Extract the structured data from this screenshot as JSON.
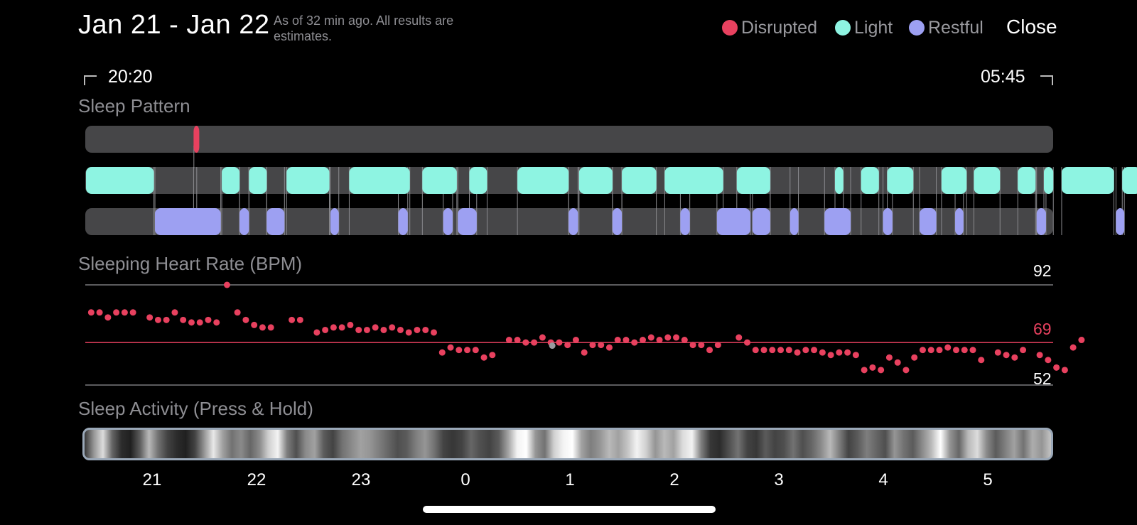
{
  "header": {
    "title": "Jan 21 - Jan 22",
    "subtitle": "As of 32 min ago. All results are estimates.",
    "close_label": "Close"
  },
  "legend": [
    {
      "label": "Disrupted",
      "color": "#e8415f"
    },
    {
      "label": "Light",
      "color": "#8ef4e2"
    },
    {
      "label": "Restful",
      "color": "#9da0f2"
    }
  ],
  "time_range": {
    "start": "20:20",
    "end": "05:45"
  },
  "sleep_pattern": {
    "title": "Sleep Pattern",
    "disrupted": [
      [
        1.03,
        1.06
      ]
    ],
    "light": [
      [
        0.0,
        0.65
      ],
      [
        1.3,
        1.47
      ],
      [
        1.56,
        1.73
      ],
      [
        1.92,
        2.33
      ],
      [
        2.52,
        3.1
      ],
      [
        3.22,
        3.55
      ],
      [
        3.67,
        3.84
      ],
      [
        4.13,
        4.62
      ],
      [
        4.72,
        5.04
      ],
      [
        5.13,
        5.46
      ],
      [
        5.54,
        6.1
      ],
      [
        6.23,
        6.55
      ],
      [
        7.17,
        7.25
      ],
      [
        7.42,
        7.59
      ],
      [
        7.67,
        7.92
      ],
      [
        8.19,
        8.43
      ],
      [
        8.5,
        8.75
      ],
      [
        8.92,
        9.09
      ],
      [
        9.17,
        9.26
      ],
      [
        9.34,
        9.84
      ],
      [
        9.92,
        10.1
      ]
    ],
    "restful": [
      [
        0.66,
        1.29
      ],
      [
        1.47,
        1.56
      ],
      [
        1.73,
        1.9
      ],
      [
        2.34,
        2.42
      ],
      [
        2.99,
        3.08
      ],
      [
        3.42,
        3.51
      ],
      [
        3.56,
        3.74
      ],
      [
        4.62,
        4.71
      ],
      [
        5.04,
        5.13
      ],
      [
        5.69,
        5.78
      ],
      [
        6.04,
        6.36
      ],
      [
        6.38,
        6.55
      ],
      [
        6.74,
        6.82
      ],
      [
        7.07,
        7.32
      ],
      [
        7.63,
        7.72
      ],
      [
        7.98,
        8.14
      ],
      [
        8.32,
        8.4
      ],
      [
        9.1,
        9.19
      ],
      [
        9.86,
        9.94
      ]
    ]
  },
  "heart_rate": {
    "title": "Sleeping Heart Rate (BPM)",
    "max_label": "92",
    "avg_label": "69",
    "min_label": "52",
    "max": 92,
    "avg": 69,
    "min": 52,
    "accent_color": "#e8415f",
    "points": [
      [
        0.05,
        81
      ],
      [
        0.13,
        81
      ],
      [
        0.21,
        79
      ],
      [
        0.29,
        81
      ],
      [
        0.37,
        81
      ],
      [
        0.45,
        81
      ],
      [
        0.61,
        79
      ],
      [
        0.69,
        78
      ],
      [
        0.77,
        78
      ],
      [
        0.85,
        81
      ],
      [
        0.93,
        78
      ],
      [
        1.01,
        77
      ],
      [
        1.09,
        77
      ],
      [
        1.17,
        78
      ],
      [
        1.25,
        77
      ],
      [
        1.35,
        92
      ],
      [
        1.45,
        81
      ],
      [
        1.53,
        78
      ],
      [
        1.61,
        76
      ],
      [
        1.69,
        75
      ],
      [
        1.77,
        75
      ],
      [
        1.97,
        78
      ],
      [
        2.05,
        78
      ],
      [
        2.21,
        73
      ],
      [
        2.29,
        74
      ],
      [
        2.37,
        75
      ],
      [
        2.45,
        75
      ],
      [
        2.53,
        76
      ],
      [
        2.61,
        74
      ],
      [
        2.69,
        74
      ],
      [
        2.77,
        75
      ],
      [
        2.85,
        74
      ],
      [
        2.93,
        75
      ],
      [
        3.01,
        74
      ],
      [
        3.09,
        73
      ],
      [
        3.17,
        74
      ],
      [
        3.25,
        74
      ],
      [
        3.33,
        73
      ],
      [
        3.41,
        65
      ],
      [
        3.49,
        67
      ],
      [
        3.57,
        66
      ],
      [
        3.65,
        66
      ],
      [
        3.73,
        66
      ],
      [
        3.81,
        63
      ],
      [
        3.89,
        64
      ],
      [
        4.05,
        70
      ],
      [
        4.13,
        70
      ],
      [
        4.21,
        69
      ],
      [
        4.29,
        69
      ],
      [
        4.37,
        71
      ],
      [
        4.45,
        69
      ],
      [
        4.53,
        69
      ],
      [
        4.61,
        68
      ],
      [
        4.69,
        70
      ],
      [
        4.77,
        65
      ],
      [
        4.85,
        68
      ],
      [
        4.93,
        68
      ],
      [
        5.01,
        67
      ],
      [
        5.09,
        70
      ],
      [
        5.17,
        70
      ],
      [
        5.25,
        69
      ],
      [
        5.33,
        70
      ],
      [
        5.41,
        71
      ],
      [
        5.49,
        70
      ],
      [
        5.57,
        71
      ],
      [
        5.65,
        71
      ],
      [
        5.73,
        70
      ],
      [
        5.81,
        68
      ],
      [
        5.89,
        68
      ],
      [
        5.97,
        66
      ],
      [
        6.05,
        68
      ],
      [
        6.25,
        71
      ],
      [
        6.33,
        69
      ],
      [
        6.41,
        66
      ],
      [
        6.49,
        66
      ],
      [
        6.57,
        66
      ],
      [
        6.65,
        66
      ],
      [
        6.73,
        66
      ],
      [
        6.81,
        65
      ],
      [
        6.89,
        66
      ],
      [
        6.97,
        66
      ],
      [
        7.05,
        65
      ],
      [
        7.13,
        64
      ],
      [
        7.21,
        65
      ],
      [
        7.29,
        65
      ],
      [
        7.37,
        64
      ],
      [
        7.45,
        58
      ],
      [
        7.53,
        59
      ],
      [
        7.61,
        58
      ],
      [
        7.69,
        63
      ],
      [
        7.77,
        61
      ],
      [
        7.85,
        58
      ],
      [
        7.93,
        63
      ],
      [
        8.01,
        66
      ],
      [
        8.09,
        66
      ],
      [
        8.17,
        66
      ],
      [
        8.25,
        67
      ],
      [
        8.33,
        66
      ],
      [
        8.41,
        66
      ],
      [
        8.49,
        66
      ],
      [
        8.57,
        62
      ],
      [
        8.73,
        65
      ],
      [
        8.81,
        64
      ],
      [
        8.89,
        63
      ],
      [
        8.97,
        66
      ],
      [
        9.13,
        64
      ],
      [
        9.21,
        62
      ],
      [
        9.29,
        59
      ],
      [
        9.37,
        58
      ],
      [
        9.45,
        67
      ],
      [
        9.53,
        70
      ]
    ],
    "grey_point": [
      4.45,
      70
    ]
  },
  "sleep_activity": {
    "title": "Sleep Activity (Press & Hold)",
    "intensity": [
      0.15,
      0.55,
      0.85,
      0.35,
      0.1,
      0.05,
      0.3,
      0.7,
      0.4,
      0.2,
      0.1,
      0.05,
      0.2,
      0.55,
      0.9,
      0.6,
      0.4,
      0.5,
      0.35,
      0.5,
      0.8,
      0.95,
      0.45,
      0.25,
      0.5,
      0.6,
      0.3,
      0.2,
      0.4,
      0.5,
      0.6,
      0.55,
      0.45,
      0.35,
      0.25,
      0.3,
      0.45,
      0.55,
      0.4,
      0.2,
      0.15,
      0.2,
      0.35,
      0.25,
      0.2,
      0.3,
      0.6,
      0.95,
      1.0,
      0.55,
      0.4,
      0.8,
      0.95,
      1.0,
      0.6,
      0.45,
      0.55,
      0.7,
      0.6,
      0.75,
      0.95,
      0.8,
      0.55,
      0.7,
      0.6,
      0.85,
      0.95,
      0.45,
      0.15,
      0.1,
      0.25,
      0.4,
      0.2,
      0.15,
      0.3,
      0.2,
      0.25,
      0.4,
      0.25,
      0.35,
      0.5,
      0.7,
      0.45,
      0.2,
      0.3,
      0.45,
      0.35,
      0.25,
      0.55,
      0.4,
      0.3,
      0.5,
      0.7,
      1.0,
      0.55,
      0.35,
      0.7,
      0.85,
      0.5,
      0.3,
      0.45,
      0.6,
      0.4,
      0.65,
      0.55,
      0.75
    ]
  },
  "hour_axis": {
    "labels": [
      "21",
      "22",
      "23",
      "0",
      "1",
      "2",
      "3",
      "4",
      "5"
    ]
  }
}
